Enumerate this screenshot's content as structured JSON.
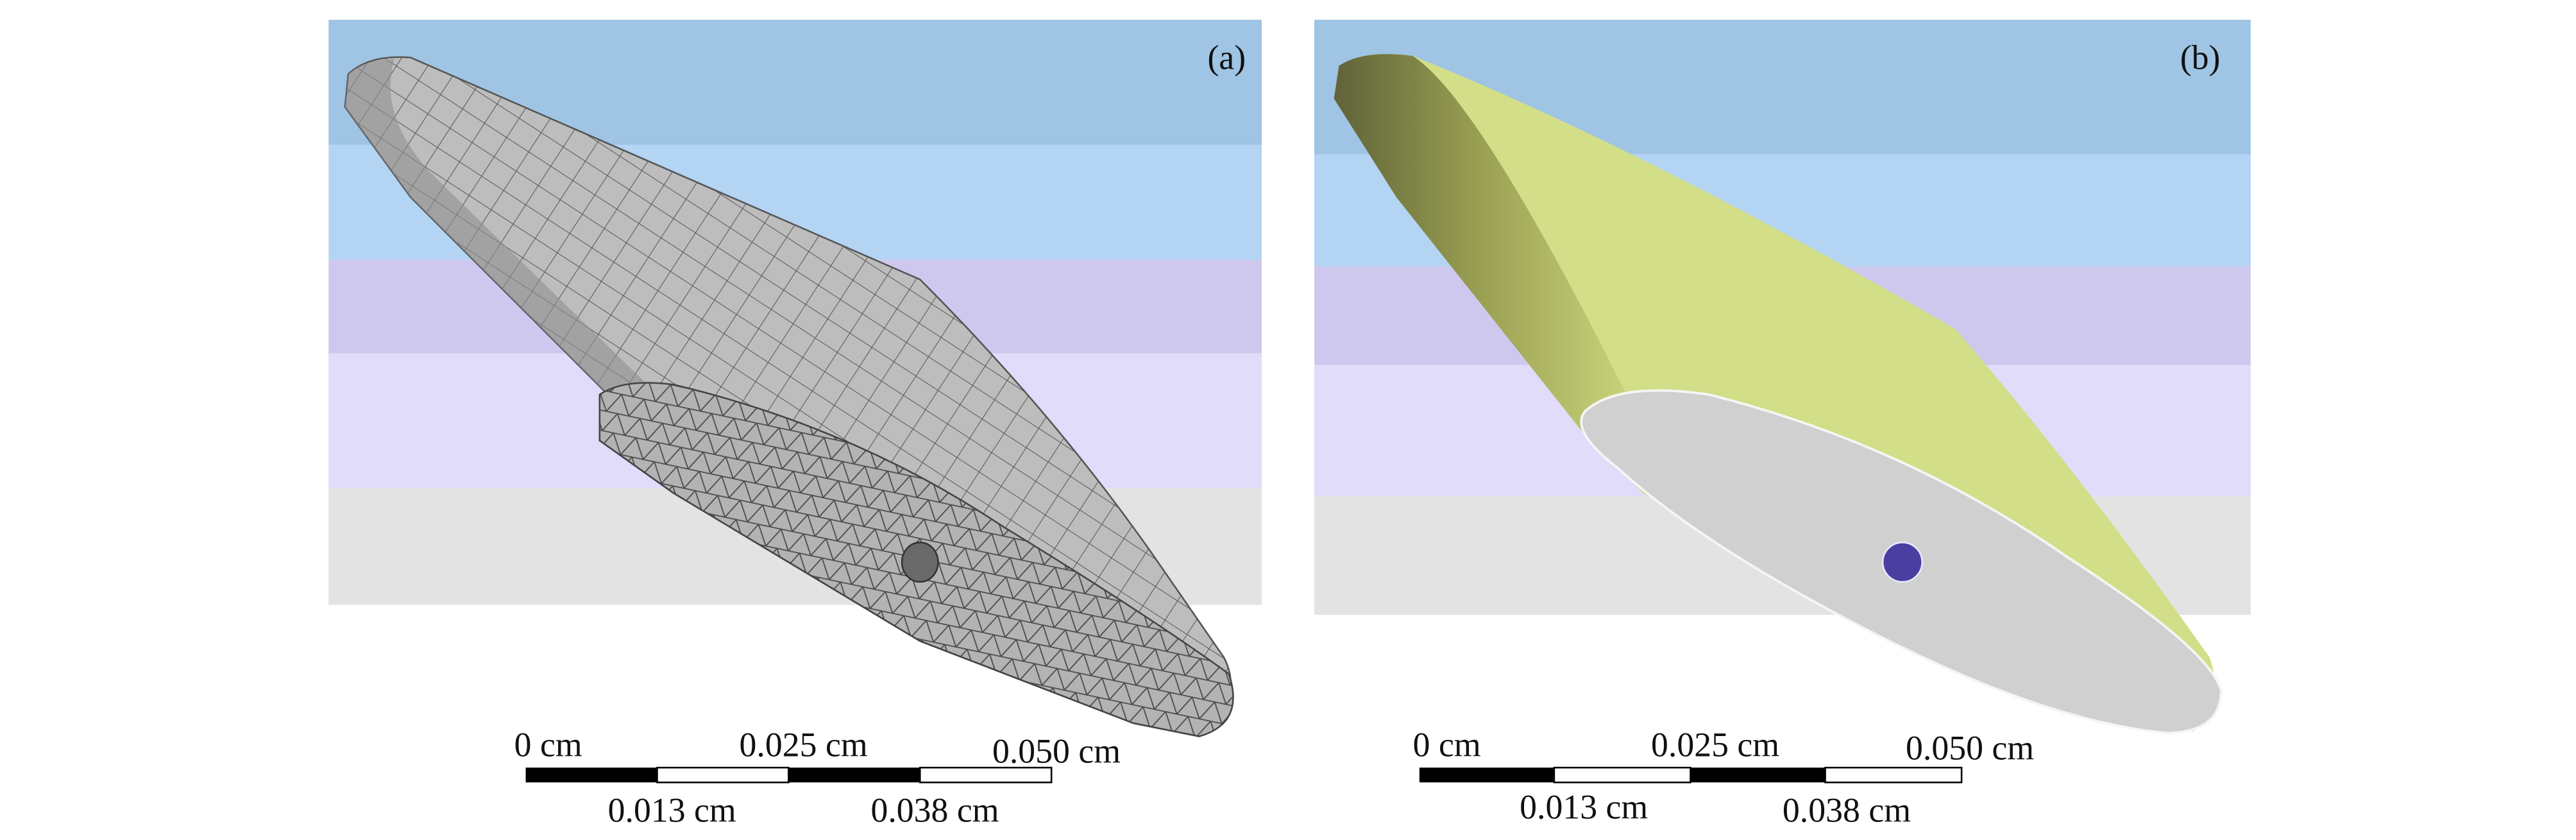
{
  "panels": [
    {
      "label": "(a)",
      "scale_bar": {
        "top_labels": [
          "0 cm",
          "0.025 cm",
          "0.050 cm"
        ],
        "bottom_labels": [
          "0.013 cm",
          "0.038 cm"
        ]
      }
    },
    {
      "label": "(b)",
      "scale_bar": {
        "top_labels": [
          "0 cm",
          "0.025 cm",
          "0.050 cm"
        ],
        "bottom_labels": [
          "0.013 cm",
          "0.038 cm"
        ]
      }
    }
  ]
}
